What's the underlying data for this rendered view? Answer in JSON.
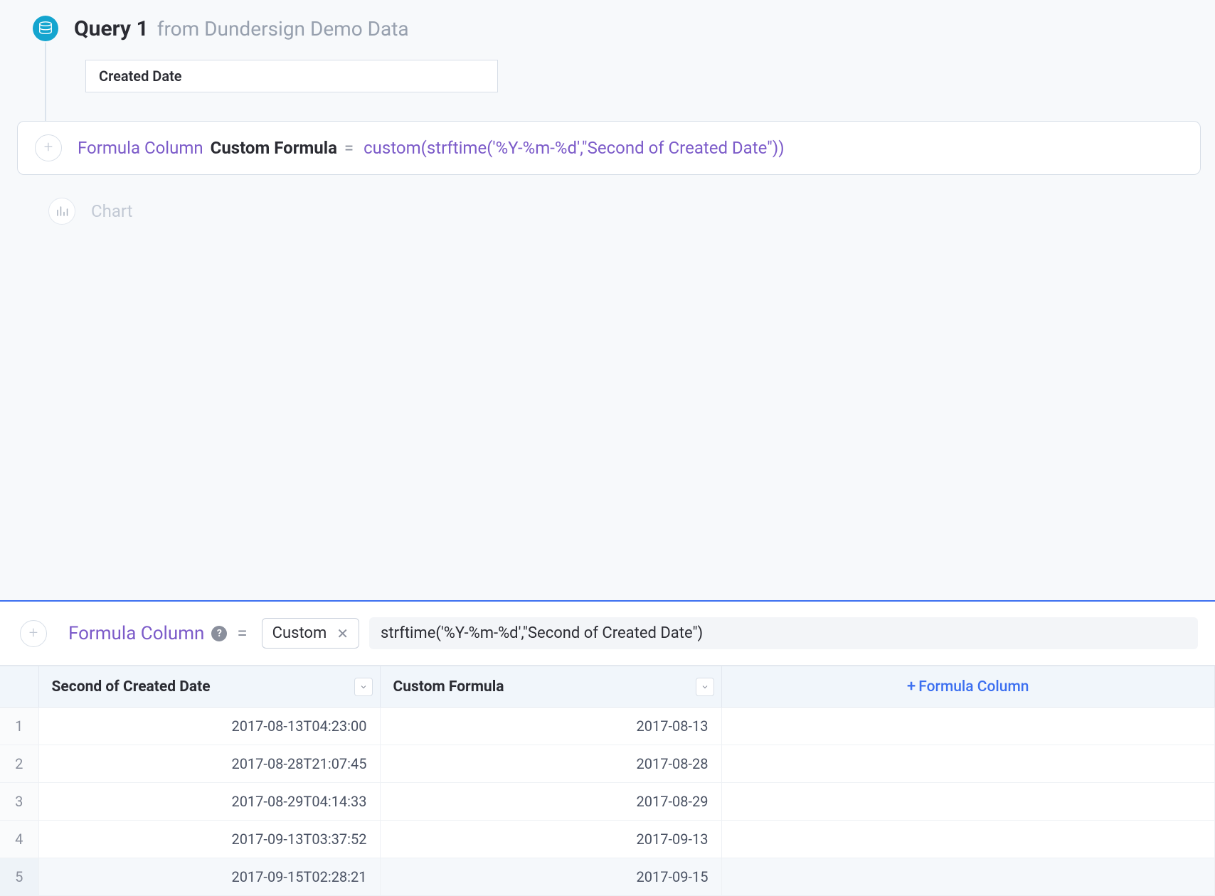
{
  "colors": {
    "accent_purple": "#7c5bc9",
    "accent_blue": "#3c6ff0",
    "db_badge": "#14a5cf",
    "text_primary": "#2b2c33",
    "text_muted": "#97a0ae",
    "text_faint": "#c2c9d4",
    "border": "#d7dee7",
    "table_header_bg": "#f1f6fb",
    "page_bg": "#f7f9fb"
  },
  "query": {
    "title": "Query 1",
    "from_prefix": "from",
    "data_source": "Dundersign Demo Data",
    "selected_column": "Created Date"
  },
  "formula_card": {
    "label": "Formula Column",
    "name": "Custom Formula",
    "equals": "=",
    "expression": "custom(strftime('%Y-%m-%d',\"Second of Created Date\"))"
  },
  "chart": {
    "label": "Chart"
  },
  "editor": {
    "label": "Formula Column",
    "help": "?",
    "equals": "=",
    "chip": "Custom",
    "expression": "strftime('%Y-%m-%d',\"Second of Created Date\")"
  },
  "table": {
    "columns": [
      {
        "key": "second",
        "label": "Second of Created Date"
      },
      {
        "key": "custom",
        "label": "Custom Formula"
      }
    ],
    "add_column_label": "Formula Column",
    "rows": [
      {
        "n": "1",
        "second": "2017-08-13T04:23:00",
        "custom": "2017-08-13"
      },
      {
        "n": "2",
        "second": "2017-08-28T21:07:45",
        "custom": "2017-08-28"
      },
      {
        "n": "3",
        "second": "2017-08-29T04:14:33",
        "custom": "2017-08-29"
      },
      {
        "n": "4",
        "second": "2017-09-13T03:37:52",
        "custom": "2017-09-13"
      },
      {
        "n": "5",
        "second": "2017-09-15T02:28:21",
        "custom": "2017-09-15"
      }
    ]
  }
}
